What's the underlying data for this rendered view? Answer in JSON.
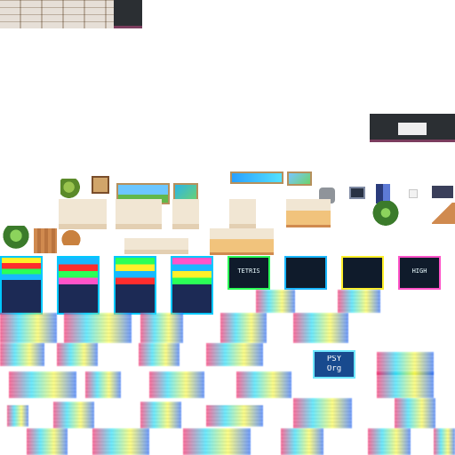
{
  "sheet": {
    "width": 512,
    "height": 512,
    "background": "#ffffff"
  },
  "tiles": {
    "brick": {
      "color": "#e6dfd7",
      "mortar": "#cfc6bc"
    },
    "dark_panel": {
      "color": "#2b2f33",
      "edge": "#7b3d5e"
    },
    "wood": {
      "color": "#d08a4f",
      "light": "#f1c37c"
    },
    "cabinet": {
      "color": "#f1e6d3"
    }
  },
  "arcade": {
    "screen_texts": [
      {
        "label": "TETRIS"
      },
      {
        "label": "HIGH"
      }
    ],
    "marquee_colors": [
      "#ff2d2d",
      "#ffef2a",
      "#2bff57",
      "#19b7ff",
      "#ff53c8"
    ]
  },
  "ui_bits": {
    "visible_text": [
      {
        "text": "PSY"
      },
      {
        "text": "Org"
      }
    ]
  }
}
